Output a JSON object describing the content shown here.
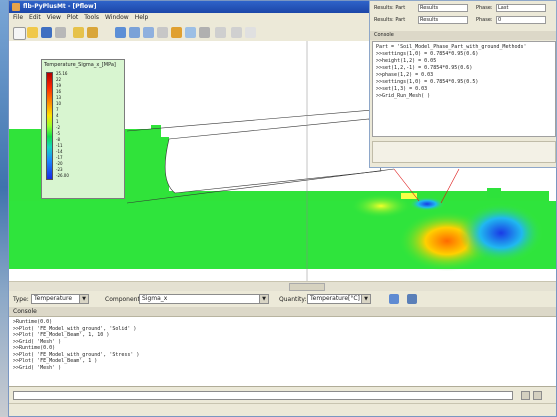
{
  "app": {
    "title": "flb-PyPlusMt - [Pflow]"
  },
  "menu": [
    "File",
    "Edit",
    "View",
    "Plot",
    "Tools",
    "Window",
    "Help"
  ],
  "toolbar_icons": [
    "new-file-icon",
    "open-folder-icon",
    "save-icon",
    "print-icon",
    "undo-icon",
    "redo-icon",
    "zoom-icon",
    "pan-icon",
    "rotate-icon",
    "grid-icon",
    "contour-icon",
    "vector-icon",
    "mesh-icon",
    "ruler-icon",
    "export-icon",
    "help-icon"
  ],
  "legend": {
    "title": "Temperature_Sigma_x_[MPa]",
    "ticks": [
      "25.16",
      "22",
      "19",
      "16",
      "13",
      "10",
      "7",
      "4",
      "1",
      "-2",
      "-5",
      "-8",
      "-11",
      "-14",
      "-17",
      "-20",
      "-23",
      "-26.00"
    ]
  },
  "selectors": {
    "type_label": "Type:",
    "type_value": "Temperature",
    "component_label": "Component:",
    "component_value": "Sigma_x",
    "quantity_label": "Quantity:",
    "quantity_value": "Temperature[°C]"
  },
  "console": {
    "header": "Console",
    "lines": [
      ">Runtime(0.0)",
      ">>Plot( 'FE_Model_with_ground', 'Solid' )",
      ">>Plot( 'FE_Model_Beam', 1, 10 )",
      ">>Grid( 'Mesh' )",
      ">>Runtime(0.0)",
      ">>Plot( 'FE_Model_with_ground', 'Stress' )",
      ">>Plot( 'FE_Model_Beam', 1 )",
      ">>Grid( 'Mesh' )"
    ]
  },
  "props": {
    "row1": {
      "l1": "Results: Part",
      "v1": "Results",
      "l2": "Phase:",
      "v2": "Last"
    },
    "row2": {
      "l1": "Results: Part",
      "v1": "Results",
      "l2": "Phase:",
      "v2": "0"
    }
  },
  "history": {
    "header": "Console",
    "lines": [
      "Part = 'Soil_Model_Phase_Part_with_ground_Methods'",
      ">>settings(1,0) = 0.7854*0.95(0.6)",
      ">>height(1,2) = 0.05",
      ">>set(1,2,-1) = 0.7854*0.95(0.6)",
      ">>phase(1,2) = 0.03",
      ">>settings(1,0) = 0.7854*0.95(0.5)",
      ">>set(1,3) = 0.03",
      ">>Grid_Run_Mesh( )"
    ]
  }
}
